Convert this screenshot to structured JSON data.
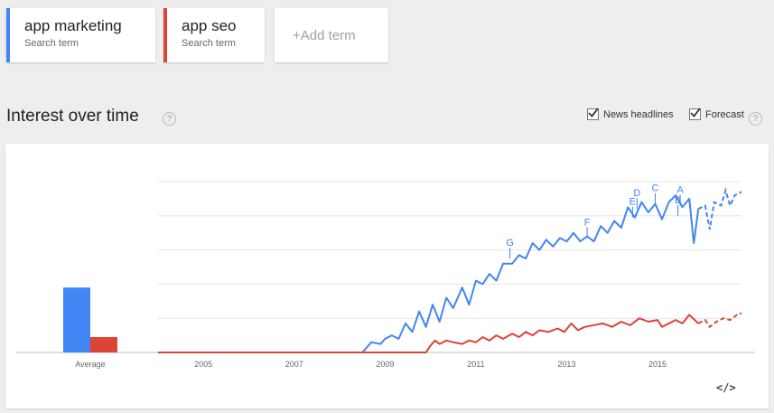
{
  "search_terms": [
    {
      "name": "app marketing",
      "subtitle": "Search term",
      "color": "#4285f4"
    },
    {
      "name": "app seo",
      "subtitle": "Search term",
      "color": "#db4437"
    }
  ],
  "add_term_label": "+Add term",
  "section": {
    "title": "Interest over time",
    "help_glyph": "?"
  },
  "options": {
    "news_headlines": {
      "label": "News headlines",
      "checked": true
    },
    "forecast": {
      "label": "Forecast",
      "checked": true
    }
  },
  "embed_label": "</>",
  "chart_data": {
    "type": "line",
    "average": {
      "label": "Average",
      "values": [
        {
          "series": "app marketing",
          "value": 38
        },
        {
          "series": "app seo",
          "value": 9
        }
      ]
    },
    "x_ticks": [
      "2005",
      "2007",
      "2009",
      "2011",
      "2013",
      "2015"
    ],
    "ylim": [
      0,
      100
    ],
    "grid": true,
    "colors": [
      "#4285f4",
      "#db4437"
    ],
    "series": [
      {
        "name": "app marketing",
        "points": [
          [
            2004.0,
            0
          ],
          [
            2006.0,
            0
          ],
          [
            2008.0,
            0
          ],
          [
            2008.5,
            0
          ],
          [
            2008.7,
            6
          ],
          [
            2008.9,
            5
          ],
          [
            2009.0,
            8
          ],
          [
            2009.15,
            10
          ],
          [
            2009.3,
            8
          ],
          [
            2009.45,
            17
          ],
          [
            2009.6,
            12
          ],
          [
            2009.75,
            24
          ],
          [
            2009.9,
            15
          ],
          [
            2010.05,
            28
          ],
          [
            2010.2,
            18
          ],
          [
            2010.35,
            32
          ],
          [
            2010.5,
            26
          ],
          [
            2010.7,
            38
          ],
          [
            2010.85,
            28
          ],
          [
            2011.0,
            42
          ],
          [
            2011.15,
            40
          ],
          [
            2011.3,
            46
          ],
          [
            2011.45,
            42
          ],
          [
            2011.6,
            52
          ],
          [
            2011.8,
            52
          ],
          [
            2011.95,
            57
          ],
          [
            2012.1,
            55
          ],
          [
            2012.25,
            64
          ],
          [
            2012.4,
            60
          ],
          [
            2012.55,
            66
          ],
          [
            2012.7,
            62
          ],
          [
            2012.85,
            67
          ],
          [
            2013.0,
            65
          ],
          [
            2013.15,
            70
          ],
          [
            2013.3,
            65
          ],
          [
            2013.45,
            68
          ],
          [
            2013.6,
            65
          ],
          [
            2013.75,
            74
          ],
          [
            2013.9,
            70
          ],
          [
            2014.05,
            77
          ],
          [
            2014.2,
            73
          ],
          [
            2014.35,
            85
          ],
          [
            2014.5,
            79
          ],
          [
            2014.65,
            88
          ],
          [
            2014.8,
            82
          ],
          [
            2014.95,
            87
          ],
          [
            2015.1,
            78
          ],
          [
            2015.25,
            88
          ],
          [
            2015.4,
            92
          ],
          [
            2015.55,
            85
          ],
          [
            2015.7,
            90
          ],
          [
            2015.8,
            64
          ],
          [
            2015.9,
            84
          ]
        ],
        "forecast": [
          [
            2015.9,
            84
          ],
          [
            2016.05,
            86
          ],
          [
            2016.15,
            72
          ],
          [
            2016.25,
            88
          ],
          [
            2016.4,
            86
          ],
          [
            2016.5,
            95
          ],
          [
            2016.6,
            86
          ],
          [
            2016.7,
            92
          ],
          [
            2016.85,
            94
          ]
        ]
      },
      {
        "name": "app seo",
        "points": [
          [
            2004.0,
            0
          ],
          [
            2006.0,
            0
          ],
          [
            2008.0,
            0
          ],
          [
            2009.9,
            0
          ],
          [
            2010.0,
            4
          ],
          [
            2010.1,
            7
          ],
          [
            2010.2,
            5
          ],
          [
            2010.35,
            7
          ],
          [
            2010.5,
            6
          ],
          [
            2010.7,
            5
          ],
          [
            2010.85,
            7
          ],
          [
            2011.0,
            6
          ],
          [
            2011.15,
            9
          ],
          [
            2011.3,
            7
          ],
          [
            2011.45,
            10
          ],
          [
            2011.6,
            8
          ],
          [
            2011.8,
            11
          ],
          [
            2011.95,
            9
          ],
          [
            2012.1,
            12
          ],
          [
            2012.25,
            10
          ],
          [
            2012.4,
            13
          ],
          [
            2012.6,
            12
          ],
          [
            2012.8,
            14
          ],
          [
            2012.95,
            12
          ],
          [
            2013.1,
            17
          ],
          [
            2013.25,
            13
          ],
          [
            2013.4,
            15
          ],
          [
            2013.6,
            16
          ],
          [
            2013.8,
            17
          ],
          [
            2014.0,
            15
          ],
          [
            2014.2,
            18
          ],
          [
            2014.4,
            16
          ],
          [
            2014.6,
            20
          ],
          [
            2014.8,
            18
          ],
          [
            2015.0,
            19
          ],
          [
            2015.1,
            15
          ],
          [
            2015.25,
            17
          ],
          [
            2015.4,
            19
          ],
          [
            2015.55,
            17
          ],
          [
            2015.7,
            22
          ],
          [
            2015.9,
            17
          ]
        ],
        "forecast": [
          [
            2015.9,
            17
          ],
          [
            2016.05,
            19
          ],
          [
            2016.15,
            15
          ],
          [
            2016.3,
            18
          ],
          [
            2016.45,
            20
          ],
          [
            2016.6,
            19
          ],
          [
            2016.75,
            22
          ],
          [
            2016.85,
            23
          ]
        ]
      }
    ],
    "annotations": [
      {
        "label": "G",
        "x": 2011.75,
        "y": 55
      },
      {
        "label": "F",
        "x": 2013.45,
        "y": 67
      },
      {
        "label": "E",
        "x": 2014.45,
        "y": 79
      },
      {
        "label": "D",
        "x": 2014.55,
        "y": 84
      },
      {
        "label": "C",
        "x": 2014.95,
        "y": 87
      },
      {
        "label": "B",
        "x": 2015.45,
        "y": 80
      },
      {
        "label": "A",
        "x": 2015.5,
        "y": 86
      }
    ]
  }
}
